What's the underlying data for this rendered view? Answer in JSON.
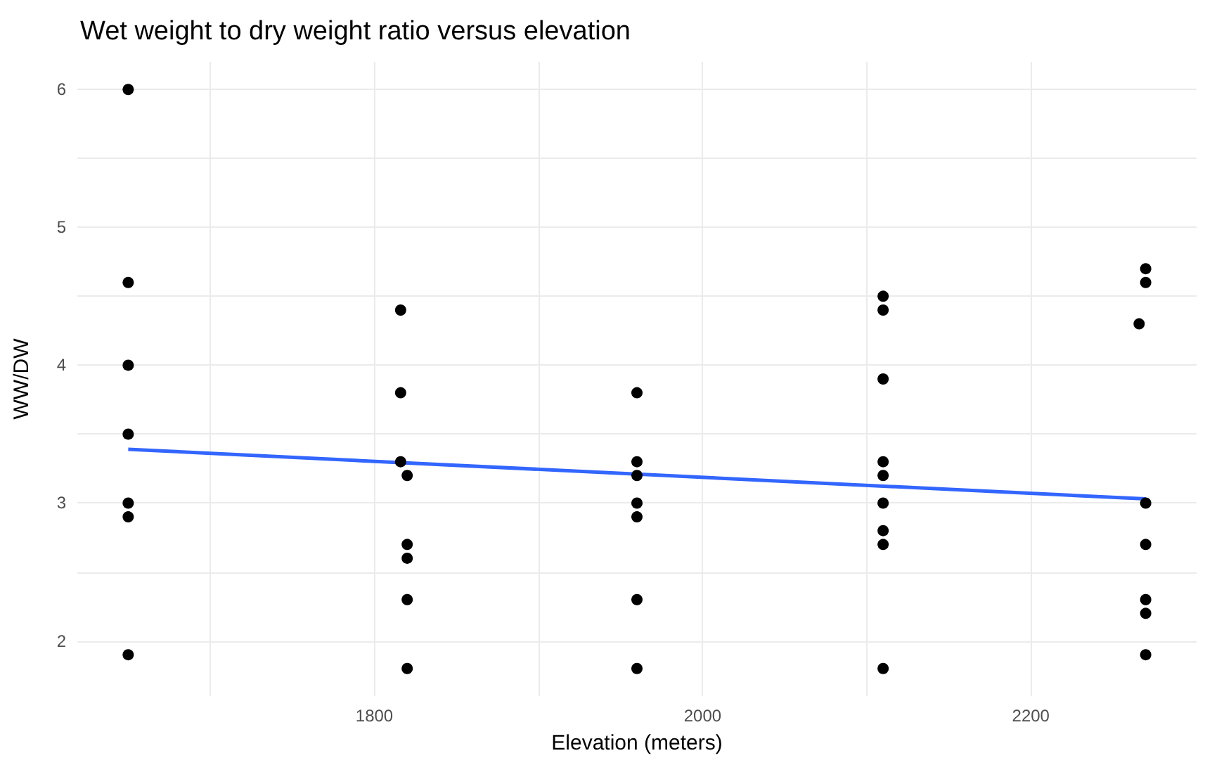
{
  "chart_data": {
    "type": "scatter",
    "title": "Wet weight to dry weight ratio versus elevation",
    "xlabel": "Elevation (meters)",
    "ylabel": "WW/DW",
    "series": [
      {
        "color": "#000000",
        "marker": "circle",
        "x": [
          1650,
          1650,
          1650,
          1650,
          1650,
          1650,
          1650,
          1816,
          1816,
          1816,
          1820,
          1820,
          1820,
          1820,
          1820,
          1960,
          1960,
          1960,
          1960,
          1960,
          1960,
          1960,
          2110,
          2110,
          2110,
          2110,
          2110,
          2110,
          2110,
          2110,
          2110,
          2270,
          2270,
          2266,
          2270,
          2270,
          2270,
          2270,
          2270
        ],
        "values": [
          6.0,
          4.6,
          4.0,
          3.5,
          3.0,
          2.9,
          1.9,
          4.4,
          3.8,
          3.3,
          3.2,
          2.7,
          2.6,
          2.3,
          1.8,
          3.8,
          3.3,
          3.2,
          3.0,
          2.9,
          2.3,
          1.8,
          4.5,
          4.4,
          3.9,
          3.3,
          3.2,
          3.0,
          2.8,
          2.7,
          1.8,
          4.7,
          4.6,
          4.3,
          3.0,
          2.7,
          2.3,
          2.2,
          1.9
        ]
      },
      {
        "type": "line",
        "color": "#3366ff",
        "line_style": "solid",
        "x": [
          1650,
          2270
        ],
        "values": [
          3.39,
          3.03
        ]
      }
    ],
    "xlim": [
      1619,
      2301
    ],
    "xticks": [
      {
        "value": 1700,
        "label": null
      },
      1800,
      {
        "value": 1900,
        "label": null
      },
      2000,
      {
        "value": 2100,
        "label": null
      },
      2200
    ],
    "ylim": [
      1.6,
      6.2
    ],
    "yticks": [
      2,
      {
        "value": 2.5,
        "label": null
      },
      3,
      {
        "value": 3.5,
        "label": null
      },
      4,
      {
        "value": 4.5,
        "label": null
      },
      5,
      {
        "value": 5.5,
        "label": null
      },
      6
    ],
    "grid": true
  }
}
